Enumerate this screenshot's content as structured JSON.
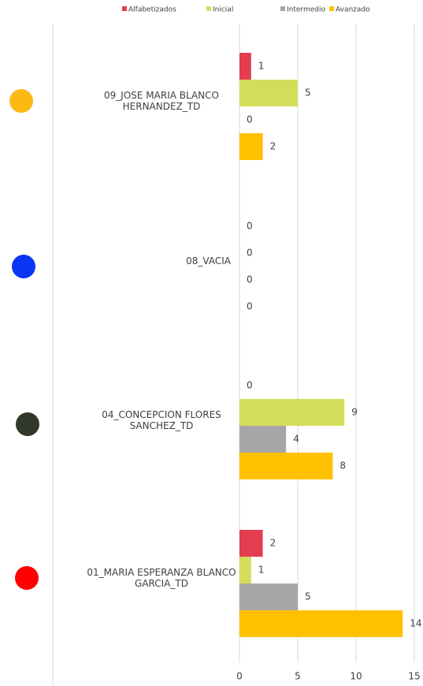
{
  "chart_data": {
    "type": "bar",
    "orientation": "horizontal",
    "categories": [
      "09_JOSE MARIA BLANCO\nHERNANDEZ_TD",
      "08_VACIA",
      "04_CONCEPCION FLORES\nSANCHEZ_TD",
      "01_MARIA ESPERANZA BLANCO\nGARCIA_TD"
    ],
    "series": [
      {
        "name": "Alfabetizados",
        "color": "#e33d4f",
        "values": [
          1,
          0,
          0,
          2
        ]
      },
      {
        "name": "Inicial",
        "color": "#d4dc5c",
        "values": [
          5,
          0,
          9,
          1
        ]
      },
      {
        "name": "Intermedio",
        "color": "#a6a6a6",
        "values": [
          0,
          0,
          4,
          5
        ]
      },
      {
        "name": "Avanzado",
        "color": "#ffc000",
        "values": [
          2,
          0,
          8,
          14
        ]
      }
    ],
    "xlim": [
      0,
      15
    ],
    "xticks": [
      0,
      5,
      10,
      15
    ],
    "grid": true,
    "legend": "top"
  }
}
